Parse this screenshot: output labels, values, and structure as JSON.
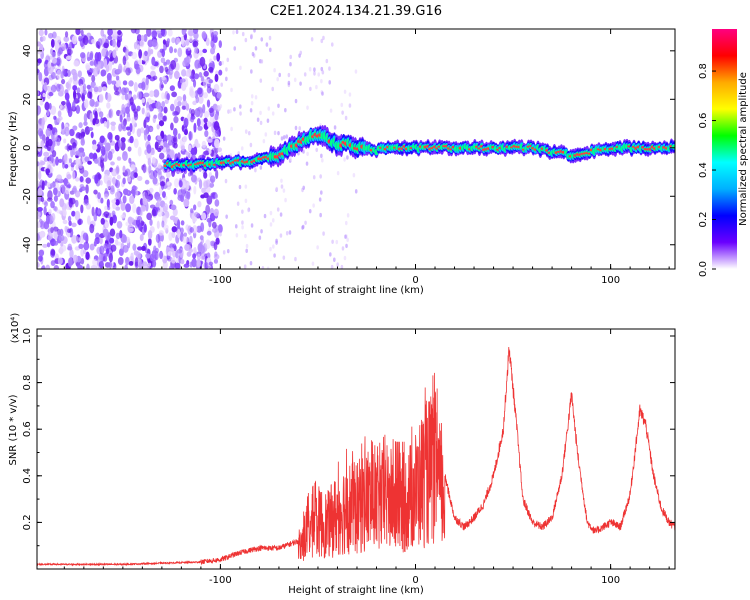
{
  "title": "C2E1.2024.134.21.39.G16",
  "chart_data": [
    {
      "type": "heatmap",
      "xlabel": "Height of straight line (km)",
      "ylabel": "Frequency (Hz)",
      "xlim": [
        -194,
        133
      ],
      "ylim": [
        -50,
        49
      ],
      "x_ticks": [
        -100,
        0,
        100
      ],
      "y_ticks": [
        -40,
        -20,
        0,
        20,
        40
      ],
      "colorbar": {
        "label": "Normalized spectral amplitude",
        "range": [
          0,
          0.97
        ],
        "ticks": [
          0.0,
          0.2,
          0.4,
          0.6,
          0.8
        ],
        "colors": [
          "#ffffff",
          "#6a00ff",
          "#0000ff",
          "#00b0ff",
          "#00ffff",
          "#00ff00",
          "#ffff00",
          "#ffaa00",
          "#ff0000",
          "#ff0080"
        ]
      },
      "ridge": {
        "x": [
          -128,
          -110,
          -100,
          -85,
          -70,
          -60,
          -52,
          -45,
          -40,
          -35,
          -30,
          -20,
          -10,
          0,
          10,
          20,
          40,
          60,
          80,
          100,
          133
        ],
        "y": [
          -7,
          -7,
          -6,
          -6,
          -3,
          2,
          5,
          4,
          1,
          2,
          0,
          -1,
          0,
          0,
          0,
          0,
          0,
          0,
          -3,
          0,
          0
        ]
      }
    },
    {
      "type": "line",
      "xlabel": "Height of straight line (km)",
      "ylabel": "SNR (10 * v/v)",
      "y_multiplier": "(x10⁴)",
      "xlim": [
        -194,
        133
      ],
      "ylim": [
        0,
        1.03
      ],
      "x_ticks": [
        -100,
        0,
        100
      ],
      "y_ticks": [
        0.2,
        0.4,
        0.6,
        0.8,
        1.0
      ],
      "color": "#ee3333",
      "series": [
        {
          "x": [
            -194,
            -150,
            -110,
            -100,
            -90,
            -80,
            -70,
            -60,
            -55,
            -50,
            -45,
            -40,
            -35,
            -30,
            -25,
            -20,
            -15,
            -10,
            -5,
            0,
            5,
            10,
            15,
            20,
            25,
            30,
            35,
            40,
            45,
            48,
            52,
            55,
            60,
            65,
            70,
            75,
            80,
            83,
            88,
            92,
            96,
            100,
            105,
            110,
            115,
            118,
            122,
            126,
            130,
            133
          ],
          "y": [
            0.02,
            0.02,
            0.03,
            0.04,
            0.07,
            0.09,
            0.09,
            0.12,
            0.25,
            0.3,
            0.28,
            0.35,
            0.4,
            0.38,
            0.45,
            0.4,
            0.45,
            0.42,
            0.42,
            0.5,
            0.6,
            0.65,
            0.4,
            0.22,
            0.18,
            0.22,
            0.28,
            0.4,
            0.6,
            0.95,
            0.6,
            0.3,
            0.2,
            0.18,
            0.22,
            0.4,
            0.75,
            0.5,
            0.2,
            0.16,
            0.18,
            0.2,
            0.18,
            0.32,
            0.68,
            0.62,
            0.4,
            0.26,
            0.2,
            0.18
          ]
        }
      ]
    }
  ]
}
